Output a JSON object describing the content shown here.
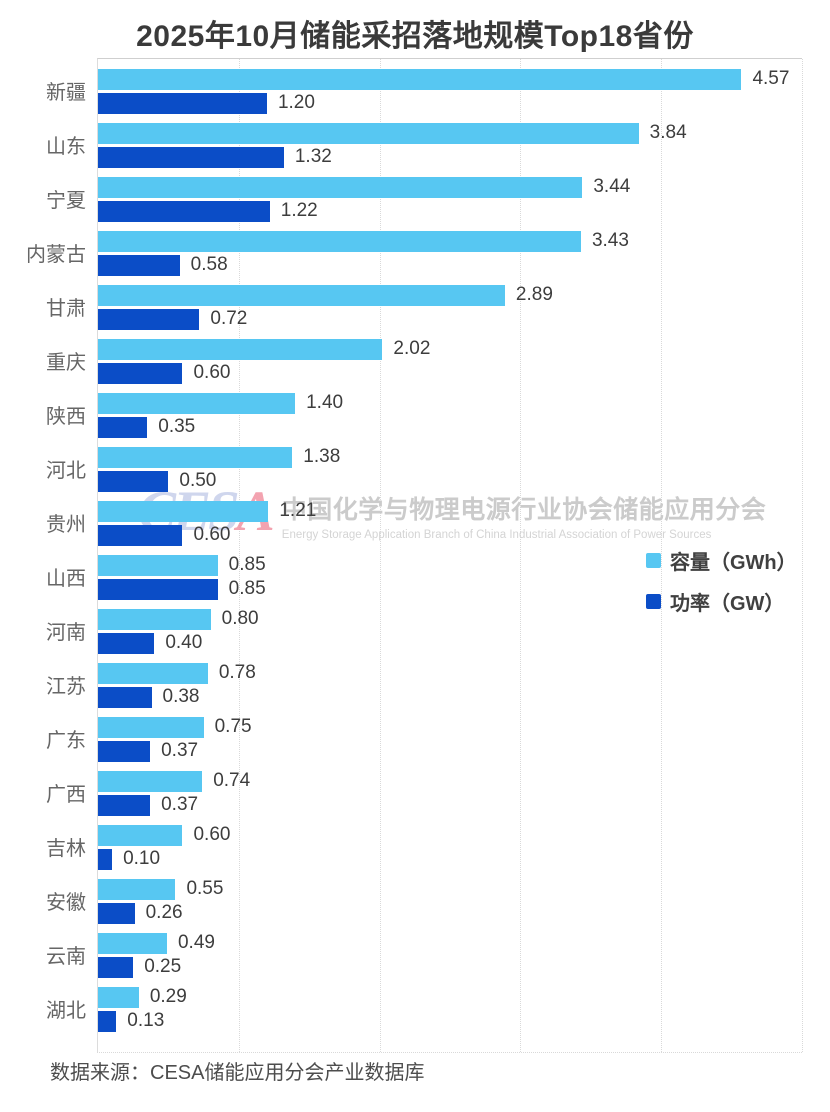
{
  "title": "2025年10月储能采招落地规模Top18省份",
  "source_note": "数据来源：CESA储能应用分会产业数据库",
  "colors": {
    "capacity": "#57C7F2",
    "power": "#0B4DC7",
    "gridline": "#d9d9d9"
  },
  "legend": [
    {
      "label": "容量（GWh）",
      "color": "#57C7F2"
    },
    {
      "label": "功率（GW）",
      "color": "#0B4DC7"
    }
  ],
  "watermark": {
    "logo_part1": "CES",
    "logo_part2": "A",
    "cn": "中国化学与物理电源行业协会储能应用分会",
    "en": "Energy Storage Application Branch of China Industrial Association of Power Sources"
  },
  "chart_data": {
    "type": "bar",
    "orientation": "horizontal",
    "title": "2025年10月储能采招落地规模Top18省份",
    "categories": [
      "新疆",
      "山东",
      "宁夏",
      "内蒙古",
      "甘肃",
      "重庆",
      "陕西",
      "河北",
      "贵州",
      "山西",
      "河南",
      "江苏",
      "广东",
      "广西",
      "吉林",
      "安徽",
      "云南",
      "湖北"
    ],
    "series": [
      {
        "name": "容量（GWh）",
        "color": "#57C7F2",
        "values": [
          4.57,
          3.84,
          3.44,
          3.43,
          2.89,
          2.02,
          1.4,
          1.38,
          1.21,
          0.85,
          0.8,
          0.78,
          0.75,
          0.74,
          0.6,
          0.55,
          0.49,
          0.29
        ]
      },
      {
        "name": "功率（GW）",
        "color": "#0B4DC7",
        "values": [
          1.2,
          1.32,
          1.22,
          0.58,
          0.72,
          0.6,
          0.35,
          0.5,
          0.6,
          0.85,
          0.4,
          0.38,
          0.37,
          0.37,
          0.1,
          0.26,
          0.25,
          0.13
        ]
      }
    ],
    "xlim": [
      0,
      5
    ],
    "grid": true,
    "gridline_interval": 1.0,
    "value_labels": true,
    "value_label_format": "0.00",
    "legend_position": "right-middle"
  }
}
